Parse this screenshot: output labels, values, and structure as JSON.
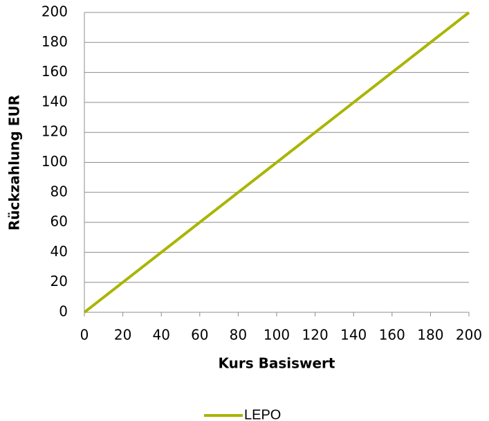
{
  "chart_data": {
    "type": "line",
    "x": [
      0,
      200
    ],
    "series": [
      {
        "name": "LEPO",
        "color": "#a9b500",
        "values": [
          0,
          200
        ]
      }
    ],
    "xlabel": "Kurs Basiswert",
    "ylabel": "Rückzahlung EUR",
    "xlim": [
      0,
      200
    ],
    "xticks": [
      0,
      20,
      40,
      60,
      80,
      100,
      120,
      140,
      160,
      180,
      200
    ],
    "ylim": [
      0,
      200
    ],
    "yticks": [
      0,
      20,
      40,
      60,
      80,
      100,
      120,
      140,
      160,
      180,
      200
    ],
    "grid": true,
    "legend": "bottom"
  }
}
